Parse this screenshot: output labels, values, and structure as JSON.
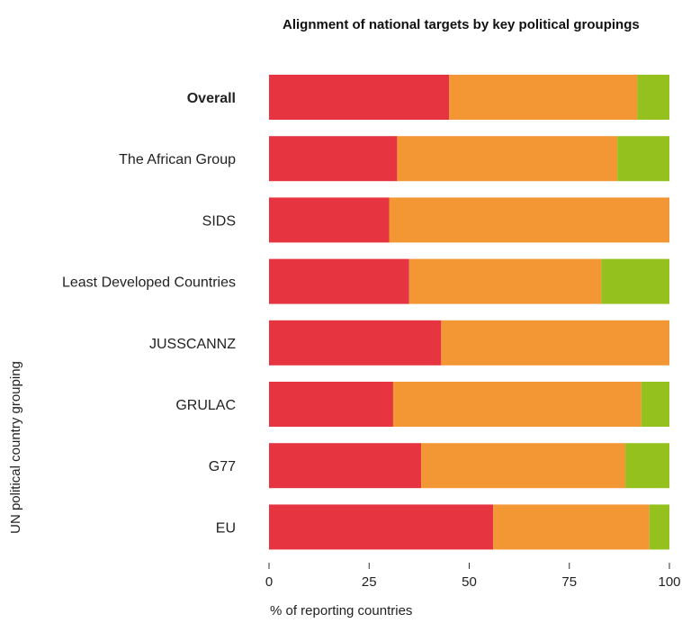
{
  "chart_data": {
    "type": "bar",
    "orientation": "horizontal",
    "stacked": true,
    "title": "Alignment of national targets by key political groupings",
    "xlabel": "% of reporting countries",
    "ylabel": "UN political country grouping",
    "xlim": [
      0,
      100
    ],
    "xticks": [
      "0",
      "25",
      "50",
      "75",
      "100"
    ],
    "categories": [
      "Overall",
      "The African Group",
      "SIDS",
      "Least Developed Countries",
      "JUSSCANNZ",
      "GRULAC",
      "G77",
      "EU"
    ],
    "bold_categories": [
      "Overall"
    ],
    "series": [
      {
        "color": "#e63541",
        "values": [
          45,
          32,
          30,
          35,
          43,
          31,
          38,
          56
        ]
      },
      {
        "color": "#f39634",
        "values": [
          47,
          55,
          70,
          48,
          57,
          62,
          51,
          39
        ]
      },
      {
        "color": "#95c11f",
        "values": [
          8,
          13,
          0,
          17,
          0,
          7,
          11,
          5
        ]
      }
    ],
    "grid": false,
    "legend": "none"
  }
}
